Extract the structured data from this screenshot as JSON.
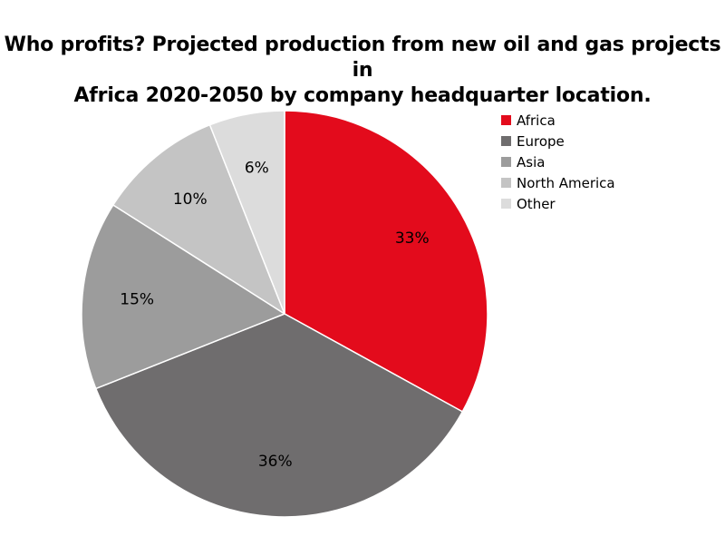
{
  "chart_data": {
    "type": "pie",
    "title_lines": [
      "Who profits? Projected production from new oil and gas projects in",
      "Africa 2020-2050 by company headquarter location."
    ],
    "categories": [
      "Africa",
      "Europe",
      "Asia",
      "North America",
      "Other"
    ],
    "values": [
      33,
      36,
      15,
      10,
      6
    ],
    "labels": [
      "33%",
      "36%",
      "15%",
      "10%",
      "6%"
    ],
    "colors": [
      "#e30b1c",
      "#6f6d6e",
      "#9c9c9c",
      "#c4c4c4",
      "#dcdcdc"
    ],
    "start_angle": "12 o'clock",
    "direction": "clockwise",
    "legend_position": "top-right"
  }
}
